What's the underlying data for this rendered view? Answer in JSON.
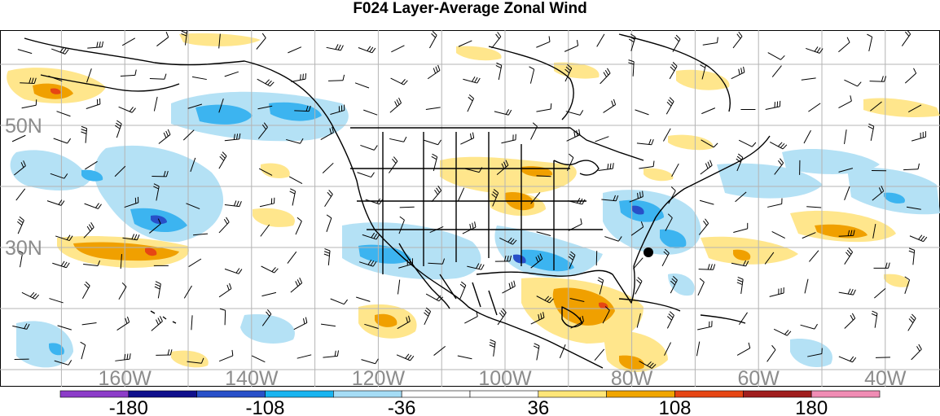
{
  "title": "F024 Layer-Average Zonal Wind",
  "latitude_labels": [
    {
      "text": "50N",
      "lat": 50
    },
    {
      "text": "30N",
      "lat": 30
    }
  ],
  "longitude_labels": [
    {
      "text": "160W",
      "lon": -160
    },
    {
      "text": "140W",
      "lon": -140
    },
    {
      "text": "120W",
      "lon": -120
    },
    {
      "text": "100W",
      "lon": -100
    },
    {
      "text": "80W",
      "lon": -80
    },
    {
      "text": "60W",
      "lon": -60
    },
    {
      "text": "40W",
      "lon": -40
    }
  ],
  "colorbar": {
    "colors": [
      "#8c3cc8",
      "#0f0f8c",
      "#2850c8",
      "#19b4f0",
      "#a5dcf5",
      "#ffffff",
      "#ffffff",
      "#ffe678",
      "#f0a500",
      "#e64614",
      "#a01e1e",
      "#f08cb4"
    ],
    "tick_labels": [
      "-180",
      "-108",
      "-36",
      "36",
      "108",
      "180"
    ]
  },
  "colors": {
    "light_blue": "#b4e1f5",
    "medium_blue": "#3cb4f0",
    "dark_blue": "#2850c8",
    "light_yellow": "#ffe68c",
    "orange": "#f0a000",
    "red_orange": "#e64614",
    "grid": "#b4b4b4",
    "boundary": "#000000"
  }
}
